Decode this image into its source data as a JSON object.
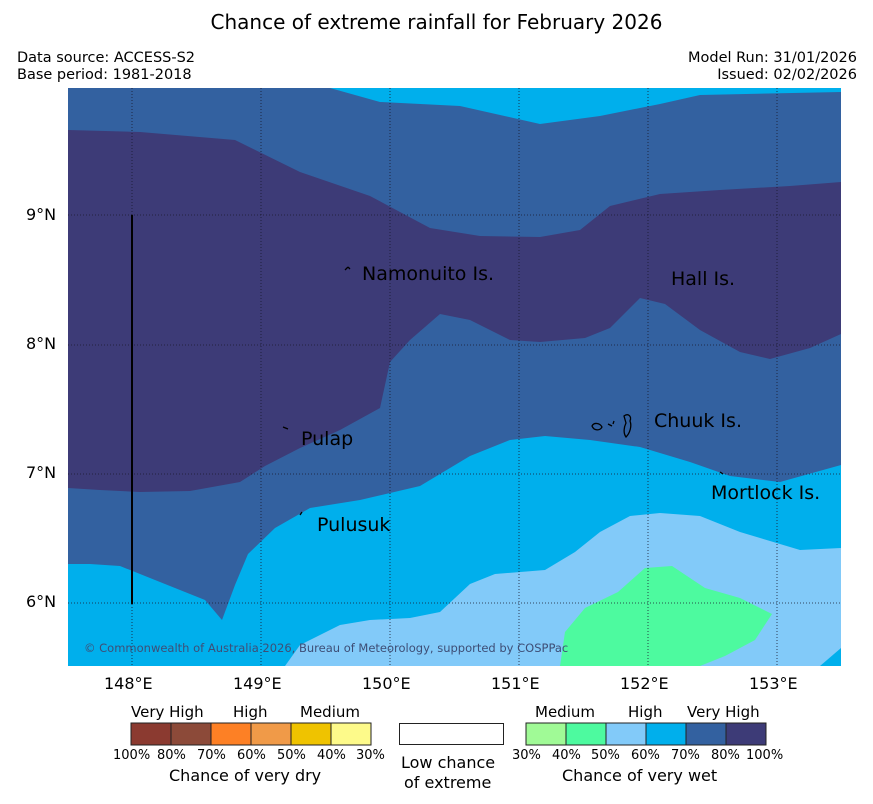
{
  "title": "Chance of extreme rainfall for February 2026",
  "meta": {
    "data_source": "Data source: ACCESS-S2",
    "base_period": "Base period: 1981-2018",
    "model_run": "Model Run: 31/01/2026",
    "issued": "Issued: 02/02/2026"
  },
  "map": {
    "lon_ticks": [
      "148°E",
      "149°E",
      "150°E",
      "151°E",
      "152°E",
      "153°E"
    ],
    "lat_ticks": [
      "9°N",
      "8°N",
      "7°N",
      "6°N"
    ],
    "places": {
      "namonuito": "Namonuito Is.",
      "hall": "Hall Is.",
      "chuuk": "Chuuk Is.",
      "pulap": "Pulap",
      "mortlock": "Mortlock Is.",
      "pulusuk": "Pulusuk"
    },
    "copyright": "© Commonwealth of Australia 2026, Bureau of Meteorology, supported by COSPPac",
    "colors": {
      "wet_30_40": "#a0fa96",
      "wet_40_50": "#4dfa9f",
      "wet_50_60": "#82caf9",
      "wet_60_70": "#00afec",
      "wet_70_80": "#3361a0",
      "wet_80_100": "#3d3b77"
    }
  },
  "legend": {
    "dry": {
      "headings": [
        "Very High",
        "High",
        "Medium"
      ],
      "percents": [
        "100%",
        "80%",
        "70%",
        "60%",
        "50%",
        "40%",
        "30%"
      ],
      "colors": [
        "#8b3a30",
        "#8c4a39",
        "#fd8025",
        "#f09a48",
        "#efc300",
        "#fdfa8a"
      ],
      "caption": "Chance of very dry"
    },
    "neutral": {
      "line1": "Low chance",
      "line2": "of extreme"
    },
    "wet": {
      "headings": [
        "Medium",
        "High",
        "Very High"
      ],
      "percents": [
        "30%",
        "40%",
        "50%",
        "60%",
        "70%",
        "80%",
        "100%"
      ],
      "colors": [
        "#a0fa96",
        "#4dfa9f",
        "#82caf9",
        "#00afec",
        "#3361a0",
        "#3d3b77"
      ],
      "caption": "Chance of very wet"
    }
  }
}
